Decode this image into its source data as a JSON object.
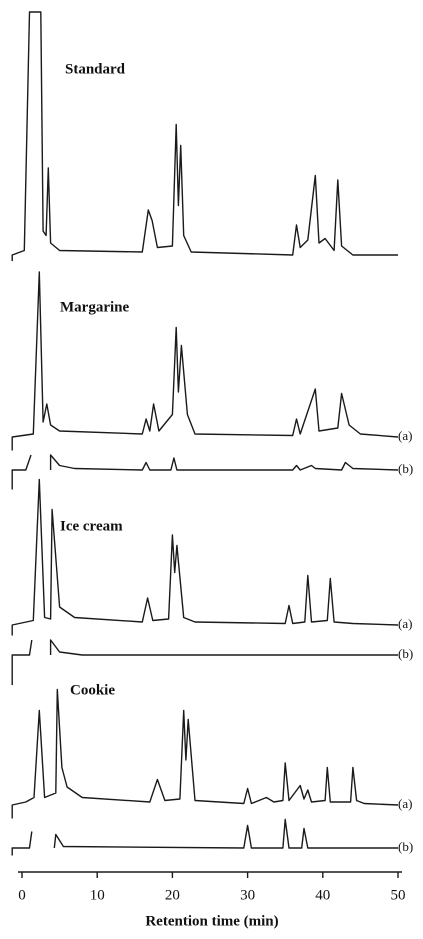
{
  "chart_data": {
    "type": "line",
    "xlabel": "Retention time (min)",
    "xlim": [
      0,
      50
    ],
    "xticks": [
      0,
      10,
      20,
      30,
      40,
      50
    ],
    "ylim": [
      0,
      100
    ],
    "color": "#1a1a1a",
    "panels": [
      {
        "title": "Standard",
        "series": [
          {
            "x": [
              -1.3,
              -1.3,
              0.3,
              1,
              2.5,
              2.8,
              3.2,
              3.5,
              3.8,
              5,
              16,
              16.8,
              17.3,
              18,
              20,
              20.5,
              20.8,
              21.1,
              21.5,
              22.5,
              36,
              36.5,
              37,
              38,
              39,
              39.5,
              40.3,
              41.5,
              42,
              42.5,
              44,
              50
            ],
            "values": [
              -4,
              0,
              3,
              162,
              162,
              16,
              13,
              58,
              8,
              3,
              2,
              30,
              23,
              5,
              6,
              87,
              33,
              73,
              13,
              2,
              0,
              20,
              5,
              10,
              53,
              8,
              11,
              3,
              50,
              6,
              0,
              0
            ]
          }
        ]
      },
      {
        "title": "Margarine",
        "series": [
          {
            "name": "(a)",
            "x": [
              -1.3,
              -1.3,
              1.5,
              2.3,
              2.8,
              3.3,
              3.8,
              5,
              16,
              16.5,
              17,
              17.5,
              18.2,
              20,
              20.5,
              20.8,
              21.2,
              22,
              23,
              36,
              36.5,
              37,
              39,
              39.5,
              42,
              42.5,
              43.5,
              45,
              50
            ],
            "values": [
              -9,
              0,
              2,
              110,
              10,
              22,
              8,
              4,
              2,
              12,
              4,
              22,
              4,
              15,
              73,
              30,
              61,
              15,
              2,
              1,
              12,
              2,
              32,
              4,
              6,
              29,
              8,
              2,
              0
            ]
          },
          {
            "name": "(b)",
            "x": [
              -1.3,
              -1.3,
              0.5,
              1.2,
              2,
              3.8,
              3.8,
              5,
              7,
              16,
              16.5,
              17,
              19.8,
              20.2,
              20.6,
              36,
              36.5,
              37,
              38.5,
              39,
              42.5,
              43,
              44,
              50
            ],
            "values": [
              -13,
              0,
              0,
              10,
              null,
              0,
              10,
              3,
              1,
              0,
              5,
              0,
              0,
              8,
              0,
              0,
              3,
              0,
              3,
              1,
              0,
              5,
              1,
              0
            ]
          }
        ]
      },
      {
        "title": "Ice cream",
        "series": [
          {
            "name": "(a)",
            "x": [
              -1.3,
              -1.3,
              1.5,
              2.3,
              3,
              3.8,
              4,
              5,
              7,
              16,
              16.7,
              17.4,
              19.5,
              20,
              20.3,
              20.6,
              21.5,
              23,
              35,
              35.5,
              36,
              37.6,
              38,
              38.5,
              40.6,
              41,
              41.5,
              44,
              50
            ],
            "values": [
              -7,
              0,
              3,
              97,
              5,
              4,
              77,
              12,
              5,
              2,
              18,
              3,
              4,
              60,
              35,
              53,
              5,
              2,
              1,
              13,
              1,
              2,
              33,
              2,
              3,
              31,
              2,
              1,
              0
            ]
          },
          {
            "name": "(b)",
            "x": [
              -1.3,
              -1.3,
              1,
              1.3,
              2,
              3.8,
              3.8,
              5,
              8,
              50
            ],
            "values": [
              -20,
              0,
              0,
              10,
              null,
              0,
              10,
              2,
              0,
              0
            ]
          }
        ]
      },
      {
        "title": "Cookie",
        "series": [
          {
            "name": "(a)",
            "x": [
              -1.3,
              -1.3,
              0.5,
              1.6,
              2.3,
              3,
              3.5,
              4.5,
              4.7,
              5.3,
              6,
              8,
              17,
              18,
              19,
              21,
              21.5,
              21.8,
              22.1,
              23,
              29.5,
              30,
              30.5,
              32.5,
              33.5,
              34.7,
              35,
              35.5,
              37,
              37.5,
              38,
              38.5,
              40.3,
              40.6,
              41,
              43.7,
              44,
              44.5,
              45.5,
              50
            ],
            "values": [
              -9,
              0,
              2,
              5,
              63,
              5,
              6,
              8,
              77,
              25,
              12,
              5,
              2,
              17,
              3,
              4,
              63,
              30,
              57,
              3,
              1,
              11,
              1,
              5,
              2,
              3,
              28,
              3,
              13,
              4,
              10,
              2,
              3,
              25,
              2,
              2,
              25,
              3,
              1,
              0
            ]
          },
          {
            "name": "(b)",
            "x": [
              -1.3,
              -1.3,
              1,
              1.3,
              2,
              4.3,
              4.5,
              5.5,
              29.5,
              30,
              30.5,
              34.7,
              35,
              35.5,
              37.2,
              37.5,
              38,
              50
            ],
            "values": [
              -5,
              0,
              0,
              11,
              null,
              0,
              9,
              1,
              0,
              15,
              0,
              0,
              19,
              0,
              0,
              13,
              0,
              0
            ]
          }
        ]
      }
    ]
  }
}
